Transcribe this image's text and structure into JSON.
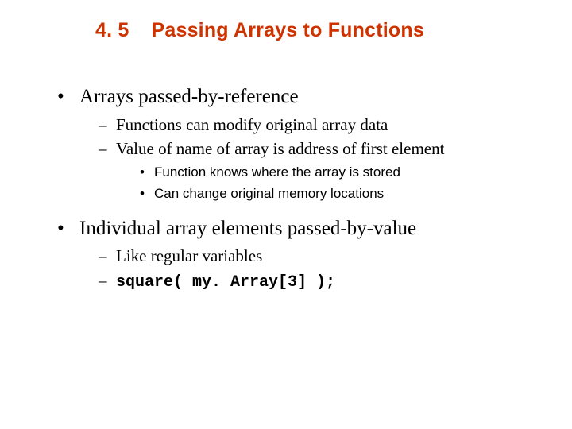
{
  "colors": {
    "title": "#cc3300",
    "body_text": "#000000",
    "background": "#ffffff"
  },
  "typography": {
    "title_family": "Arial",
    "title_size_pt": 25,
    "title_weight": "bold",
    "lvl1_family": "Times New Roman",
    "lvl1_size_pt": 25,
    "lvl2_family": "Times New Roman",
    "lvl2_size_pt": 21,
    "lvl3_family": "Arial",
    "lvl3_size_pt": 17,
    "code_family": "Courier New",
    "code_size_pt": 20,
    "code_weight": "bold"
  },
  "title": {
    "number": "4. 5",
    "text": "Passing Arrays to Functions"
  },
  "bullets": [
    {
      "text": "Arrays passed-by-reference",
      "sub": [
        {
          "text": "Functions can modify original array data",
          "sub": []
        },
        {
          "text": "Value of name of array is address of first element",
          "sub": [
            {
              "text": "Function knows where the array is stored"
            },
            {
              "text": "Can change original memory locations"
            }
          ]
        }
      ]
    },
    {
      "text": "Individual array elements passed-by-value",
      "sub": [
        {
          "text": "Like regular variables",
          "sub": []
        },
        {
          "code": "square( my. Array[3] );",
          "sub": []
        }
      ]
    }
  ]
}
